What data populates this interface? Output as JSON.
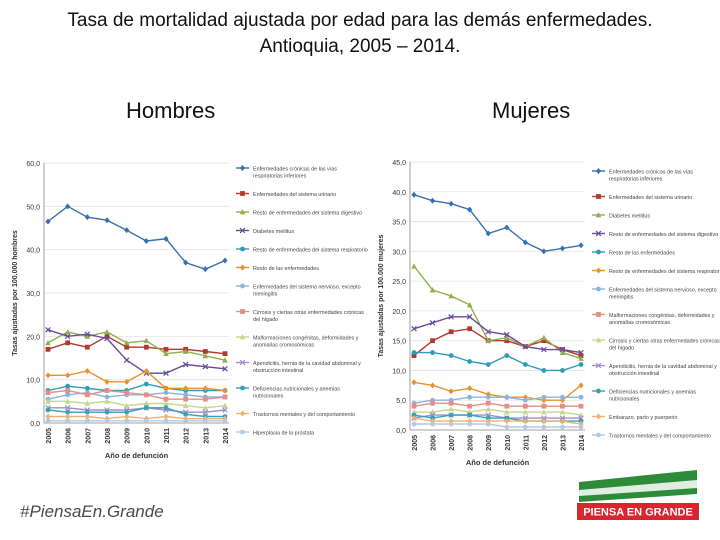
{
  "title": {
    "line1": "Tasa de mortalidad ajustada por edad para las demás enfermedades.",
    "line2": "Antioquia, 2005 – 2014."
  },
  "panels": {
    "hombres": "Hombres",
    "mujeres": "Mujeres"
  },
  "footer": {
    "hashtag": "#PiensaEn.Grande"
  },
  "logo": {
    "text": "PIENSA EN GRANDE",
    "colors": {
      "green": "#2e8b3a",
      "red": "#d7262d",
      "white": "#ffffff"
    }
  },
  "chart_data": [
    {
      "type": "line",
      "panel": "Hombres",
      "ylabel": "Tasas ajustadas por 100.000 hombres",
      "xlabel": "Año de defunción",
      "ylim": [
        0,
        60
      ],
      "yticks": [
        "0,0",
        "10,0",
        "20,0",
        "30,0",
        "40,0",
        "50,0",
        "60,0"
      ],
      "categories": [
        "2005",
        "2006",
        "2007",
        "2008",
        "2009",
        "2010",
        "2011",
        "2012",
        "2013",
        "2014"
      ],
      "series": [
        {
          "name": "Enfermedades crónicas de las vías respiratorias inferiores",
          "color": "#3a6fb0",
          "marker": "diamond",
          "values": [
            46.5,
            50.0,
            47.5,
            46.8,
            44.5,
            42.0,
            42.5,
            37.0,
            35.5,
            37.5
          ]
        },
        {
          "name": "Enfermedades del sistema urinario",
          "color": "#b03a30",
          "marker": "square",
          "values": [
            17.0,
            18.5,
            17.5,
            20.0,
            17.5,
            17.5,
            17.0,
            17.0,
            16.5,
            16.0
          ]
        },
        {
          "name": "Resto de enfermedades del sistema digestivo",
          "color": "#8fb04a",
          "marker": "triangle",
          "values": [
            18.5,
            21.0,
            20.0,
            21.0,
            18.5,
            19.0,
            16.0,
            16.5,
            15.5,
            14.5
          ]
        },
        {
          "name": "Diabetes mellitus",
          "color": "#6a4a9a",
          "marker": "cross",
          "values": [
            21.5,
            20.0,
            20.5,
            19.5,
            14.5,
            11.5,
            11.5,
            13.5,
            13.0,
            12.5
          ]
        },
        {
          "name": "Resto de enfermedades del sistema respiratorio",
          "color": "#2f9bb8",
          "marker": "circle",
          "values": [
            7.5,
            8.5,
            8.0,
            7.5,
            7.5,
            9.0,
            8.0,
            7.5,
            7.5,
            7.5
          ]
        },
        {
          "name": "Resto de las enfermedades",
          "color": "#e8922c",
          "marker": "diamond",
          "values": [
            11.0,
            11.0,
            12.0,
            9.5,
            9.5,
            12.0,
            8.0,
            8.0,
            8.0,
            7.5
          ]
        },
        {
          "name": "Enfermedades del sistema nervioso, excepto meningitis",
          "color": "#8ab4dc",
          "marker": "circle",
          "values": [
            5.5,
            6.5,
            7.0,
            6.0,
            6.5,
            6.5,
            7.0,
            6.5,
            6.0,
            6.0
          ]
        },
        {
          "name": "Cirrosis y ciertas otras enfermedades crónicas del hígado",
          "color": "#e58d86",
          "marker": "square",
          "values": [
            7.0,
            7.5,
            6.5,
            7.5,
            7.0,
            6.5,
            5.5,
            5.5,
            5.5,
            6.0
          ]
        },
        {
          "name": "Malformaciones congénitas, deformidades y anomalías cromosómicas",
          "color": "#c4d88a",
          "marker": "triangle",
          "values": [
            5.0,
            5.0,
            4.5,
            5.0,
            4.0,
            4.5,
            4.5,
            4.0,
            3.5,
            4.0
          ]
        },
        {
          "name": "Apendicitis, hernia de la cavidad abdominal y obstrucción intestinal",
          "color": "#a58ad0",
          "marker": "cross",
          "values": [
            3.5,
            3.5,
            3.0,
            3.0,
            3.0,
            3.5,
            3.0,
            2.5,
            2.5,
            3.0
          ]
        },
        {
          "name": "Deficiencias nutricionales y anemias nutricionales",
          "color": "#35a3b5",
          "marker": "circle",
          "values": [
            3.0,
            2.5,
            2.5,
            2.5,
            2.5,
            3.5,
            3.5,
            2.0,
            1.5,
            1.5
          ]
        },
        {
          "name": "Trastornos mentales y del comportamiento",
          "color": "#f0b274",
          "marker": "diamond",
          "values": [
            1.5,
            1.5,
            1.5,
            1.0,
            1.5,
            1.0,
            1.5,
            1.0,
            1.0,
            1.0
          ]
        },
        {
          "name": "Hiperplasia de la próstata",
          "color": "#b5c9e3",
          "marker": "circle",
          "values": [
            0.5,
            0.5,
            0.5,
            0.5,
            0.5,
            0.5,
            0.5,
            0.5,
            0.5,
            0.5
          ]
        }
      ]
    },
    {
      "type": "line",
      "panel": "Mujeres",
      "ylabel": "Tasas ajustadas por 100.000 mujeres",
      "xlabel": "Año de defunción",
      "ylim": [
        0,
        45
      ],
      "yticks": [
        "0,0",
        "5,0",
        "10,0",
        "15,0",
        "20,0",
        "25,0",
        "30,0",
        "35,0",
        "40,0",
        "45,0"
      ],
      "categories": [
        "2005",
        "2006",
        "2007",
        "2008",
        "2009",
        "2010",
        "2011",
        "2012",
        "2013",
        "2014"
      ],
      "series": [
        {
          "name": "Enfermedades crónicas de las vías respiratorias inferiores",
          "color": "#3a6fb0",
          "marker": "diamond",
          "values": [
            39.5,
            38.5,
            38.0,
            37.0,
            33.0,
            34.0,
            31.5,
            30.0,
            30.5,
            31.0
          ]
        },
        {
          "name": "Enfermedades del sistema urinario",
          "color": "#b03a30",
          "marker": "square",
          "values": [
            12.5,
            15.0,
            16.5,
            17.0,
            15.0,
            15.0,
            14.0,
            15.0,
            13.5,
            12.5
          ]
        },
        {
          "name": "Diabetes mellitus",
          "color": "#8fb04a",
          "marker": "triangle",
          "values": [
            27.5,
            23.5,
            22.5,
            21.0,
            15.0,
            15.5,
            14.0,
            15.5,
            13.0,
            12.0
          ]
        },
        {
          "name": "Resto de enfermedades del sistema digestivo",
          "color": "#6a4a9a",
          "marker": "cross",
          "values": [
            17.0,
            18.0,
            19.0,
            19.0,
            16.5,
            16.0,
            14.0,
            13.5,
            13.5,
            13.0
          ]
        },
        {
          "name": "Resto de las enfermedades",
          "color": "#2f9bb8",
          "marker": "circle",
          "values": [
            13.0,
            13.0,
            12.5,
            11.5,
            11.0,
            12.5,
            11.0,
            10.0,
            10.0,
            11.0
          ]
        },
        {
          "name": "Resto de enfermedades del sistema respiratorio",
          "color": "#e8922c",
          "marker": "diamond",
          "values": [
            8.0,
            7.5,
            6.5,
            7.0,
            6.0,
            5.5,
            5.5,
            5.0,
            5.0,
            7.5
          ]
        },
        {
          "name": "Enfermedades del sistema nervioso, excepto meningitis",
          "color": "#8ab4dc",
          "marker": "circle",
          "values": [
            4.5,
            5.0,
            5.0,
            5.5,
            5.5,
            5.5,
            5.0,
            5.5,
            5.5,
            5.5
          ]
        },
        {
          "name": "Malformaciones congénitas, deformidades y anomalías cromosómicas",
          "color": "#e58d86",
          "marker": "square",
          "values": [
            4.0,
            4.5,
            4.5,
            4.0,
            4.5,
            4.0,
            4.0,
            4.0,
            4.0,
            4.0
          ]
        },
        {
          "name": "Cirrosis y ciertas otras enfermedades crónicas del hígado",
          "color": "#c4d88a",
          "marker": "triangle",
          "values": [
            3.0,
            3.0,
            3.5,
            3.0,
            3.5,
            3.0,
            3.0,
            3.0,
            3.0,
            2.5
          ]
        },
        {
          "name": "Apendicitis, hernia de la cavidad abdominal y obstrucción intestinal",
          "color": "#a58ad0",
          "marker": "cross",
          "values": [
            2.0,
            2.5,
            2.5,
            2.5,
            2.5,
            2.0,
            2.0,
            2.0,
            2.0,
            2.0
          ]
        },
        {
          "name": "Deficiencias nutricionales y anemias nutricionales",
          "color": "#35a3b5",
          "marker": "circle",
          "values": [
            2.5,
            2.0,
            2.5,
            2.5,
            2.0,
            2.0,
            1.5,
            1.5,
            1.5,
            1.5
          ]
        },
        {
          "name": "Embarazo, parto y puerperio",
          "color": "#f0b274",
          "marker": "diamond",
          "values": [
            2.0,
            1.5,
            1.5,
            1.5,
            1.5,
            1.5,
            1.5,
            1.5,
            1.5,
            1.0
          ]
        },
        {
          "name": "Trastornos mentales y del comportamiento",
          "color": "#b5c9e3",
          "marker": "circle",
          "values": [
            1.0,
            1.0,
            1.0,
            1.0,
            1.0,
            0.5,
            0.5,
            0.5,
            0.5,
            0.5
          ]
        }
      ]
    }
  ]
}
